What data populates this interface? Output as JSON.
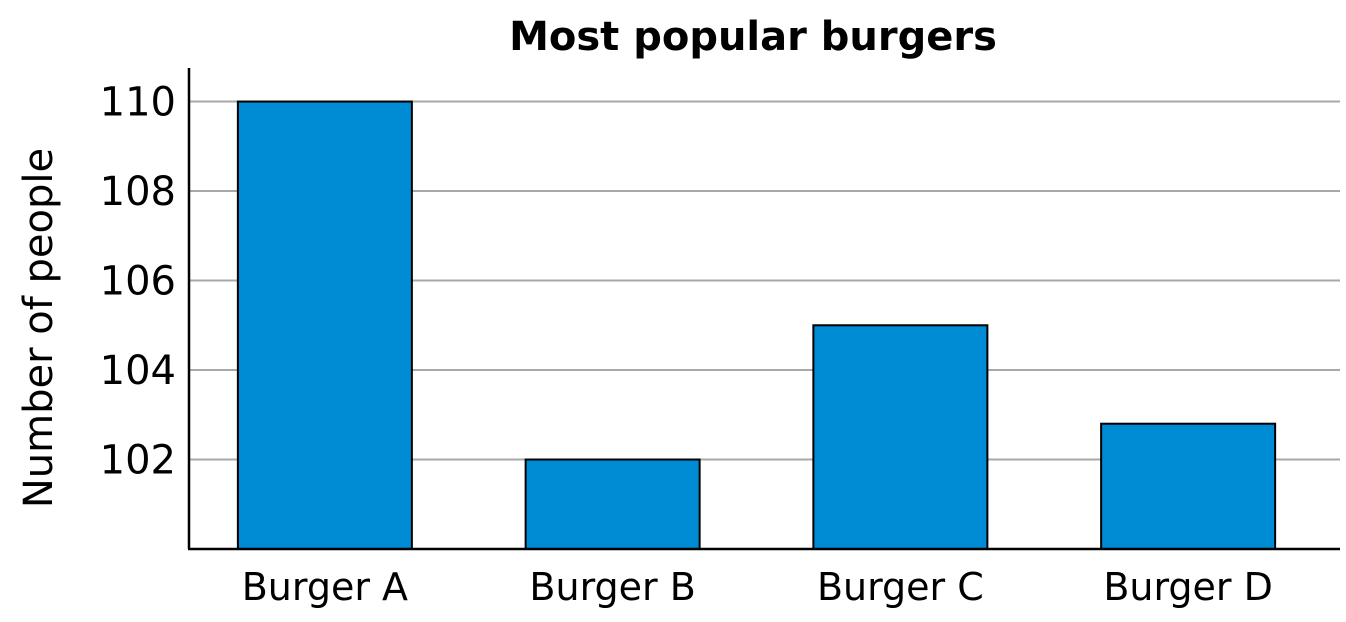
{
  "chart_data": {
    "type": "bar",
    "title": "Most popular burgers",
    "ylabel": "Number of people",
    "xlabel": "",
    "categories": [
      "Burger A",
      "Burger B",
      "Burger C",
      "Burger D"
    ],
    "values": [
      110,
      102,
      105,
      102.8
    ],
    "ylim": [
      100,
      110.75
    ],
    "yticks": [
      102,
      104,
      106,
      108,
      110
    ],
    "grid": true,
    "bar_color": "#008bd5"
  }
}
